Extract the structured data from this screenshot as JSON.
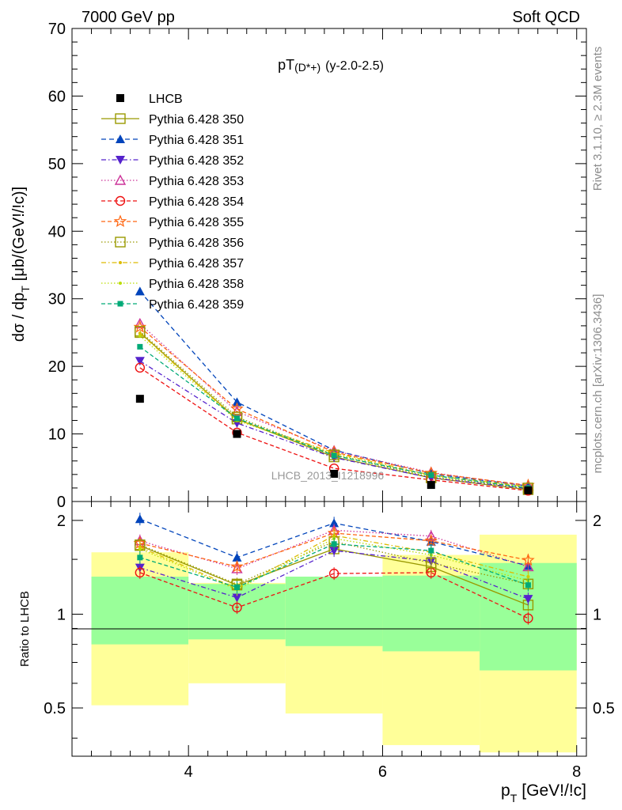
{
  "header": {
    "left": "7000 GeV pp",
    "right": "Soft QCD"
  },
  "side_labels": {
    "rivet": "Rivet 3.1.10, ≥ 2.3M events",
    "mcplots": "mcplots.cern.ch [arXiv:1306.3436]"
  },
  "chart_data": {
    "type": "line",
    "title_main": "pT",
    "title_sub": "(D*+)",
    "title_tail": "(y-2.0-2.5)",
    "watermark": "LHCB_2013_I1218996",
    "xlabel": "p_T [GeV!/!c]",
    "xlabel_main": "p",
    "xlabel_sub": "T",
    "xlabel_tail": "[GeV!/!c]",
    "ylabel": "dσ / dp_T [μb/(GeV!/!c)]",
    "ylabel_main": "dσ / dp",
    "ylabel_sub": "T",
    "ylabel_tail": "[μb/(GeV!/!c)]",
    "ratio_ylabel": "Ratio to LHCB",
    "xlim": [
      2.8,
      8.1
    ],
    "ylim": [
      0,
      70
    ],
    "ratio_ylim": [
      0.35,
      2.3
    ],
    "x_ticks": [
      "4",
      "6",
      "8"
    ],
    "y_ticks": [
      "0",
      "10",
      "20",
      "30",
      "40",
      "50",
      "60",
      "70"
    ],
    "ratio_ticks": [
      "0.5",
      "1",
      "2"
    ],
    "x": [
      3.5,
      4.5,
      5.5,
      6.5,
      7.5
    ],
    "bin_edges": [
      3,
      4,
      5,
      6,
      7,
      8
    ],
    "data": {
      "name": "LHCB",
      "values": [
        15.2,
        10.0,
        4.1,
        2.45,
        1.65
      ]
    },
    "uncertainty_bands": {
      "yellow_low": [
        0.51,
        0.6,
        0.48,
        0.38,
        0.36
      ],
      "yellow_high": [
        1.58,
        1.26,
        1.3,
        1.55,
        1.8
      ],
      "green_low": [
        0.8,
        0.83,
        0.79,
        0.76,
        0.66
      ],
      "green_high": [
        1.32,
        1.25,
        1.32,
        1.33,
        1.46
      ]
    },
    "series": [
      {
        "name": "Pythia 6.428 350",
        "color": "#999900",
        "marker": "square-open",
        "dash": "",
        "values": [
          25.0,
          12.2,
          6.6,
          3.5,
          1.75
        ],
        "ratio": [
          1.66,
          1.24,
          1.62,
          1.42,
          1.07
        ]
      },
      {
        "name": "Pythia 6.428 351",
        "color": "#0044bb",
        "marker": "triangle-up",
        "dash": "6,4",
        "values": [
          31.1,
          14.7,
          7.6,
          4.1,
          2.3
        ],
        "ratio": [
          2.02,
          1.52,
          1.96,
          1.71,
          1.43
        ]
      },
      {
        "name": "Pythia 6.428 352",
        "color": "#5522cc",
        "marker": "triangle-down",
        "dash": "6,3,1.5,3",
        "values": [
          20.8,
          11.6,
          6.5,
          3.5,
          1.9
        ],
        "ratio": [
          1.41,
          1.13,
          1.6,
          1.48,
          1.12
        ]
      },
      {
        "name": "Pythia 6.428 353",
        "color": "#cc3399",
        "marker": "triangle-open",
        "dash": "1.5,2.5",
        "values": [
          26.3,
          13.3,
          7.5,
          4.3,
          2.3
        ],
        "ratio": [
          1.72,
          1.4,
          1.86,
          1.78,
          1.42
        ]
      },
      {
        "name": "Pythia 6.428 354",
        "color": "#ee1111",
        "marker": "circle-open",
        "dash": "5,3",
        "values": [
          19.8,
          10.2,
          4.9,
          3.2,
          1.6
        ],
        "ratio": [
          1.36,
          1.05,
          1.35,
          1.36,
          0.97
        ]
      },
      {
        "name": "Pythia 6.428 355",
        "color": "#ff6611",
        "marker": "star-open",
        "dash": "5,3",
        "values": [
          25.8,
          13.7,
          7.3,
          4.2,
          2.4
        ],
        "ratio": [
          1.69,
          1.42,
          1.82,
          1.72,
          1.49
        ]
      },
      {
        "name": "Pythia 6.428 356",
        "color": "#999900",
        "marker": "square-open",
        "dash": "1.5,2.5",
        "values": [
          25.2,
          12.5,
          6.9,
          3.6,
          2.0
        ],
        "ratio": [
          1.67,
          1.25,
          1.71,
          1.46,
          1.25
        ]
      },
      {
        "name": "Pythia 6.428 357",
        "color": "#ddbb00",
        "marker": "dot",
        "dash": "6,3,1.5,3",
        "values": [
          24.9,
          12.1,
          7.2,
          3.9,
          2.2
        ],
        "ratio": [
          1.64,
          1.21,
          1.79,
          1.58,
          1.32
        ]
      },
      {
        "name": "Pythia 6.428 358",
        "color": "#bbdd00",
        "marker": "dot",
        "dash": "1.5,2.5",
        "values": [
          24.5,
          12.0,
          7.0,
          3.8,
          2.1
        ],
        "ratio": [
          1.62,
          1.2,
          1.75,
          1.55,
          1.28
        ]
      },
      {
        "name": "Pythia 6.428 359",
        "color": "#00aa77",
        "marker": "square-small",
        "dash": "5,3",
        "values": [
          22.9,
          12.3,
          6.8,
          3.9,
          2.0
        ],
        "ratio": [
          1.52,
          1.22,
          1.68,
          1.6,
          1.24
        ]
      }
    ]
  }
}
